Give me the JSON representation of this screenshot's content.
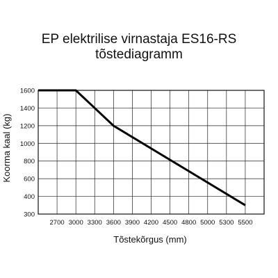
{
  "chart_data": {
    "type": "line",
    "title": "EP elektrilise virnastaja ES16-RS",
    "subtitle": "tõstediagramm",
    "xlabel": "Tõstekõrgus (mm)",
    "ylabel": "Koorma kaal (kg)",
    "x_ticks": [
      "2700",
      "3000",
      "3300",
      "3600",
      "3900",
      "4200",
      "4500",
      "4800",
      "5000",
      "5300",
      "5500"
    ],
    "y_ticks": [
      "300",
      "400",
      "600",
      "800",
      "1000",
      "1200",
      "1400",
      "1600"
    ],
    "series": [
      {
        "x": [
          "2400",
          "3000",
          "3600",
          "5500"
        ],
        "y": [
          1600,
          1600,
          1200,
          350
        ]
      }
    ],
    "grid": true,
    "line_color": "#000000"
  }
}
